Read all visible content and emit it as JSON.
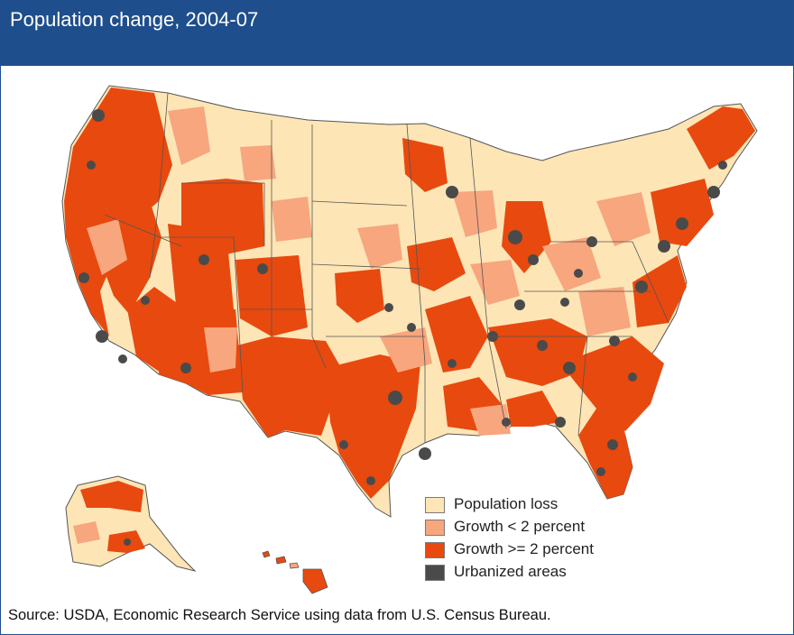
{
  "title": "Population change, 2004-07",
  "legend": [
    {
      "label": "Population loss",
      "color": "#fde5b6"
    },
    {
      "label": "Growth < 2 percent",
      "color": "#f7a67e"
    },
    {
      "label": "Growth >= 2 percent",
      "color": "#e8490f"
    },
    {
      "label": "Urbanized areas",
      "color": "#4a4a4a"
    }
  ],
  "source": "Source: USDA, Economic Research Service using data from U.S. Census Bureau.",
  "colors": {
    "header": "#1e4e8c",
    "border": "#1f4f8f",
    "state_lines": "#555555"
  }
}
